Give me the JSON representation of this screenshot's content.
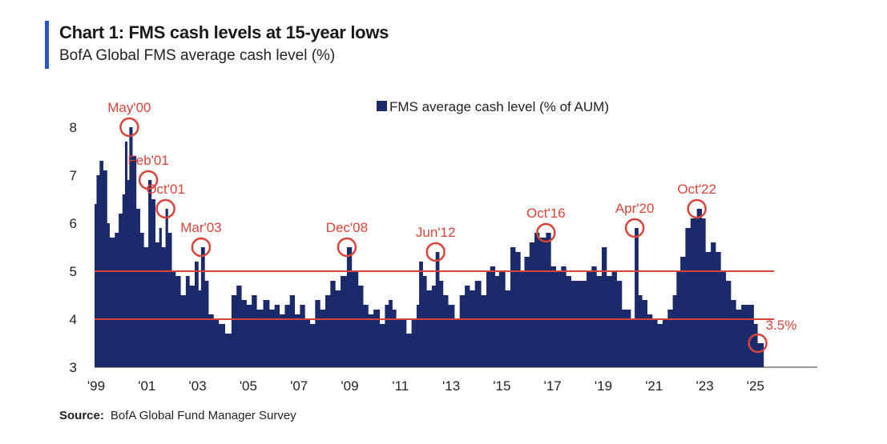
{
  "header": {
    "title": "Chart 1: FMS cash levels at 15-year lows",
    "subtitle": "BofA Global FMS average cash level (%)"
  },
  "footer": {
    "source_label": "Source:",
    "source_text": "BofA Global Fund Manager Survey"
  },
  "colors": {
    "bar": "#1b2a6b",
    "accent": "#2a55c4",
    "annotation": "#d9443a"
  },
  "chart_data": {
    "type": "area",
    "title": "Chart 1: FMS cash levels at 15-year lows",
    "ylabel": "BofA Global FMS average cash level (%)",
    "xlabel": "",
    "legend": "FMS average cash level (% of AUM)",
    "legend_position": "top-center",
    "ylim": [
      3,
      8
    ],
    "yticks": [
      "3",
      "4",
      "5",
      "6",
      "7",
      "8"
    ],
    "xlim": [
      1999.0,
      2027.5
    ],
    "xticks": [
      {
        "year": 1999,
        "label": "'99"
      },
      {
        "year": 2001,
        "label": "'01"
      },
      {
        "year": 2003,
        "label": "'03"
      },
      {
        "year": 2005,
        "label": "'05"
      },
      {
        "year": 2007,
        "label": "'07"
      },
      {
        "year": 2009,
        "label": "'09"
      },
      {
        "year": 2011,
        "label": "'11"
      },
      {
        "year": 2013,
        "label": "'13"
      },
      {
        "year": 2015,
        "label": "'15"
      },
      {
        "year": 2017,
        "label": "'17"
      },
      {
        "year": 2019,
        "label": "'19"
      },
      {
        "year": 2021,
        "label": "'21"
      },
      {
        "year": 2023,
        "label": "'23"
      },
      {
        "year": 2025,
        "label": "'25"
      }
    ],
    "reference_lines": [
      5.0,
      4.0
    ],
    "series": [
      {
        "name": "FMS average cash level (% of AUM)",
        "points": [
          [
            1999.0,
            6.4
          ],
          [
            1999.08,
            7.0
          ],
          [
            1999.2,
            7.3
          ],
          [
            1999.35,
            7.1
          ],
          [
            1999.5,
            6.0
          ],
          [
            1999.6,
            5.7
          ],
          [
            1999.8,
            5.8
          ],
          [
            1999.95,
            6.2
          ],
          [
            2000.1,
            6.6
          ],
          [
            2000.2,
            7.7
          ],
          [
            2000.3,
            6.9
          ],
          [
            2000.37,
            8.0
          ],
          [
            2000.5,
            7.4
          ],
          [
            2000.65,
            6.3
          ],
          [
            2000.8,
            5.8
          ],
          [
            2000.95,
            5.5
          ],
          [
            2001.12,
            6.9
          ],
          [
            2001.25,
            6.5
          ],
          [
            2001.4,
            5.6
          ],
          [
            2001.55,
            5.9
          ],
          [
            2001.65,
            5.5
          ],
          [
            2001.8,
            6.3
          ],
          [
            2001.9,
            5.8
          ],
          [
            2002.05,
            5.0
          ],
          [
            2002.2,
            4.9
          ],
          [
            2002.4,
            4.5
          ],
          [
            2002.6,
            4.9
          ],
          [
            2002.75,
            4.7
          ],
          [
            2002.95,
            5.2
          ],
          [
            2003.1,
            4.6
          ],
          [
            2003.2,
            5.5
          ],
          [
            2003.35,
            4.8
          ],
          [
            2003.5,
            4.1
          ],
          [
            2003.7,
            4.0
          ],
          [
            2003.9,
            3.9
          ],
          [
            2004.15,
            3.7
          ],
          [
            2004.4,
            4.5
          ],
          [
            2004.6,
            4.7
          ],
          [
            2004.8,
            4.4
          ],
          [
            2005.0,
            4.3
          ],
          [
            2005.2,
            4.5
          ],
          [
            2005.4,
            4.2
          ],
          [
            2005.65,
            4.4
          ],
          [
            2005.9,
            4.2
          ],
          [
            2006.1,
            4.3
          ],
          [
            2006.3,
            4.1
          ],
          [
            2006.5,
            4.3
          ],
          [
            2006.7,
            4.5
          ],
          [
            2006.9,
            4.1
          ],
          [
            2007.1,
            4.3
          ],
          [
            2007.3,
            4.0
          ],
          [
            2007.5,
            3.9
          ],
          [
            2007.7,
            4.4
          ],
          [
            2007.9,
            4.2
          ],
          [
            2008.1,
            4.5
          ],
          [
            2008.3,
            4.8
          ],
          [
            2008.5,
            4.6
          ],
          [
            2008.7,
            4.9
          ],
          [
            2008.95,
            5.5
          ],
          [
            2009.15,
            5.0
          ],
          [
            2009.4,
            4.7
          ],
          [
            2009.6,
            4.3
          ],
          [
            2009.8,
            4.1
          ],
          [
            2010.0,
            4.2
          ],
          [
            2010.25,
            3.9
          ],
          [
            2010.45,
            4.3
          ],
          [
            2010.6,
            4.4
          ],
          [
            2010.75,
            4.2
          ],
          [
            2010.9,
            4.0
          ],
          [
            2011.1,
            4.0
          ],
          [
            2011.3,
            3.7
          ],
          [
            2011.5,
            4.0
          ],
          [
            2011.7,
            4.3
          ],
          [
            2011.8,
            5.2
          ],
          [
            2011.95,
            4.9
          ],
          [
            2012.1,
            4.6
          ],
          [
            2012.3,
            4.7
          ],
          [
            2012.45,
            5.4
          ],
          [
            2012.6,
            4.8
          ],
          [
            2012.75,
            4.5
          ],
          [
            2012.95,
            4.3
          ],
          [
            2013.2,
            4.0
          ],
          [
            2013.4,
            4.5
          ],
          [
            2013.6,
            4.7
          ],
          [
            2013.8,
            4.6
          ],
          [
            2014.0,
            4.8
          ],
          [
            2014.25,
            4.5
          ],
          [
            2014.45,
            5.0
          ],
          [
            2014.6,
            5.1
          ],
          [
            2014.8,
            4.9
          ],
          [
            2014.95,
            5.0
          ],
          [
            2015.2,
            4.6
          ],
          [
            2015.4,
            5.5
          ],
          [
            2015.6,
            5.4
          ],
          [
            2015.8,
            5.0
          ],
          [
            2015.95,
            5.3
          ],
          [
            2016.15,
            5.6
          ],
          [
            2016.35,
            5.8
          ],
          [
            2016.55,
            5.7
          ],
          [
            2016.8,
            5.8
          ],
          [
            2017.0,
            5.1
          ],
          [
            2017.2,
            5.0
          ],
          [
            2017.4,
            5.1
          ],
          [
            2017.6,
            4.9
          ],
          [
            2017.8,
            4.8
          ],
          [
            2018.0,
            4.8
          ],
          [
            2018.2,
            4.8
          ],
          [
            2018.4,
            5.0
          ],
          [
            2018.6,
            5.1
          ],
          [
            2018.8,
            4.9
          ],
          [
            2019.0,
            5.5
          ],
          [
            2019.2,
            4.9
          ],
          [
            2019.4,
            5.0
          ],
          [
            2019.6,
            4.8
          ],
          [
            2019.8,
            4.2
          ],
          [
            2020.0,
            4.2
          ],
          [
            2020.15,
            4.0
          ],
          [
            2020.3,
            5.9
          ],
          [
            2020.45,
            4.5
          ],
          [
            2020.6,
            4.4
          ],
          [
            2020.8,
            4.1
          ],
          [
            2021.0,
            4.0
          ],
          [
            2021.2,
            3.9
          ],
          [
            2021.4,
            4.0
          ],
          [
            2021.6,
            4.2
          ],
          [
            2021.8,
            4.5
          ],
          [
            2021.95,
            5.0
          ],
          [
            2022.1,
            5.3
          ],
          [
            2022.3,
            5.9
          ],
          [
            2022.5,
            6.1
          ],
          [
            2022.75,
            6.3
          ],
          [
            2022.95,
            6.1
          ],
          [
            2023.1,
            5.4
          ],
          [
            2023.3,
            5.6
          ],
          [
            2023.5,
            5.4
          ],
          [
            2023.7,
            5.0
          ],
          [
            2023.9,
            4.8
          ],
          [
            2024.1,
            4.4
          ],
          [
            2024.3,
            4.2
          ],
          [
            2024.5,
            4.3
          ],
          [
            2024.7,
            4.3
          ],
          [
            2024.85,
            4.3
          ],
          [
            2025.0,
            3.9
          ],
          [
            2025.15,
            3.5
          ],
          [
            2025.2,
            3.5
          ]
        ]
      }
    ],
    "annotations": [
      {
        "label": "May'00",
        "x": 2000.37,
        "y": 8.0,
        "label_pos": "above"
      },
      {
        "label": "Feb'01",
        "x": 2001.12,
        "y": 6.9,
        "label_pos": "above"
      },
      {
        "label": "Oct'01",
        "x": 2001.8,
        "y": 6.3,
        "label_pos": "above"
      },
      {
        "label": "Mar'03",
        "x": 2003.2,
        "y": 5.5,
        "label_pos": "above"
      },
      {
        "label": "Dec'08",
        "x": 2008.95,
        "y": 5.5,
        "label_pos": "above"
      },
      {
        "label": "Jun'12",
        "x": 2012.45,
        "y": 5.4,
        "label_pos": "above"
      },
      {
        "label": "Oct'16",
        "x": 2016.8,
        "y": 5.8,
        "label_pos": "above"
      },
      {
        "label": "Apr'20",
        "x": 2020.3,
        "y": 5.9,
        "label_pos": "above"
      },
      {
        "label": "Oct'22",
        "x": 2022.75,
        "y": 6.3,
        "label_pos": "above"
      },
      {
        "label": "3.5%",
        "x": 2025.15,
        "y": 3.5,
        "label_pos": "right"
      }
    ]
  }
}
